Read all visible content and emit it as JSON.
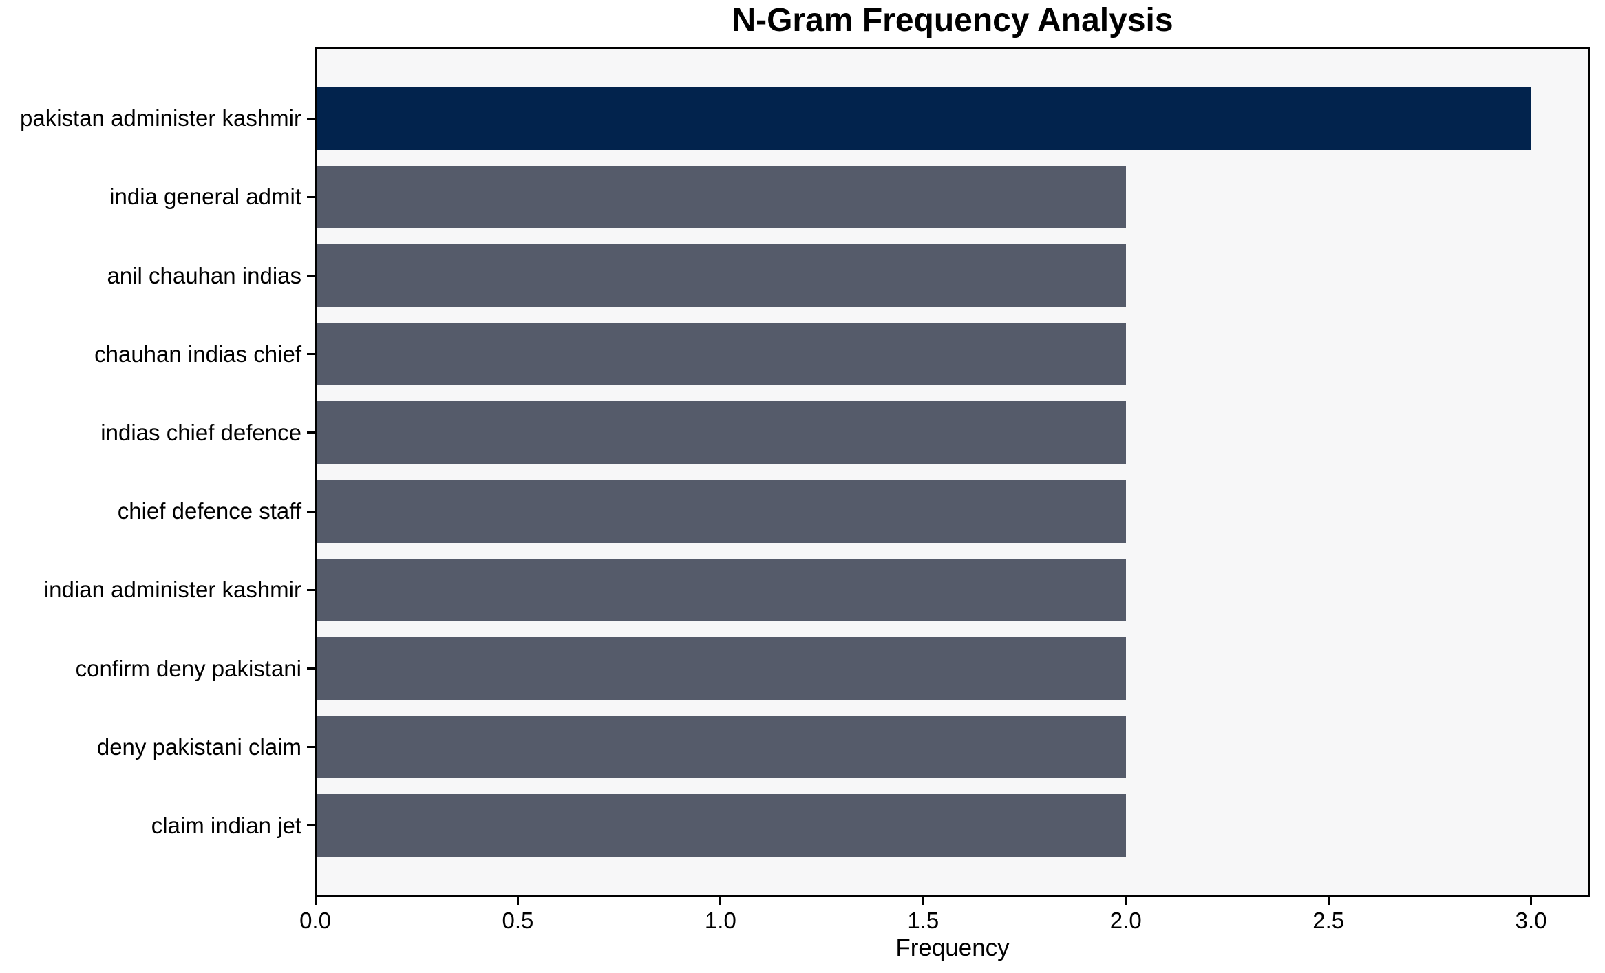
{
  "chart_data": {
    "type": "bar",
    "orientation": "horizontal",
    "title": "N-Gram Frequency Analysis",
    "xlabel": "Frequency",
    "ylabel": "",
    "categories": [
      "pakistan administer kashmir",
      "india general admit",
      "anil chauhan indias",
      "chauhan indias chief",
      "indias chief defence",
      "chief defence staff",
      "indian administer kashmir",
      "confirm deny pakistani",
      "deny pakistani claim",
      "claim indian jet"
    ],
    "values": [
      3,
      2,
      2,
      2,
      2,
      2,
      2,
      2,
      2,
      2
    ],
    "colors": [
      "#02234d",
      "#555b6a",
      "#555b6a",
      "#555b6a",
      "#555b6a",
      "#555b6a",
      "#555b6a",
      "#555b6a",
      "#555b6a",
      "#555b6a"
    ],
    "xlim": [
      0,
      3.145
    ],
    "xticks": [
      {
        "value": 0.0,
        "label": "0.0"
      },
      {
        "value": 0.5,
        "label": "0.5"
      },
      {
        "value": 1.0,
        "label": "1.0"
      },
      {
        "value": 1.5,
        "label": "1.5"
      },
      {
        "value": 2.0,
        "label": "2.0"
      },
      {
        "value": 2.5,
        "label": "2.5"
      },
      {
        "value": 3.0,
        "label": "3.0"
      }
    ],
    "grid": false,
    "legend": null,
    "plot_background": "#f7f7f8",
    "figure_background": "#ffffff",
    "spine_color": "#000000"
  }
}
